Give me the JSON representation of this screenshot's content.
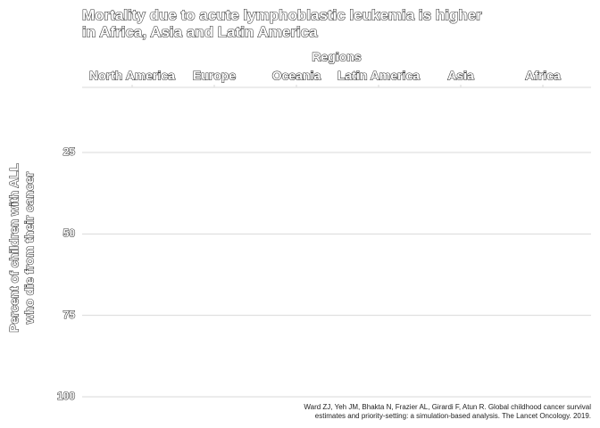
{
  "chart_data": {
    "type": "bar",
    "title": [
      "Mortality due to acute lymphoblastic leukemia is higher",
      "in Africa, Asia and Latin America"
    ],
    "x_label": "Regions",
    "y_label": [
      "Percent of children with ALL",
      "who die from their cancer"
    ],
    "categories": [
      "North America",
      "Europe",
      "Oceania",
      "Latin America",
      "Asia",
      "Africa"
    ],
    "values": [
      null,
      null,
      null,
      null,
      null,
      null
    ],
    "color": "#b2182b",
    "ylim": [
      5,
      100
    ],
    "yticks": [
      25,
      50,
      75,
      100
    ],
    "y_reversed": true,
    "grid": true,
    "caption": [
      "Ward ZJ, Yeh JM, Bhakta N, Frazier AL, Girardi F, Atun R. Global childhood cancer survival",
      "estimates and priority-setting: a simulation-based analysis. The Lancet Oncology. 2019."
    ]
  }
}
